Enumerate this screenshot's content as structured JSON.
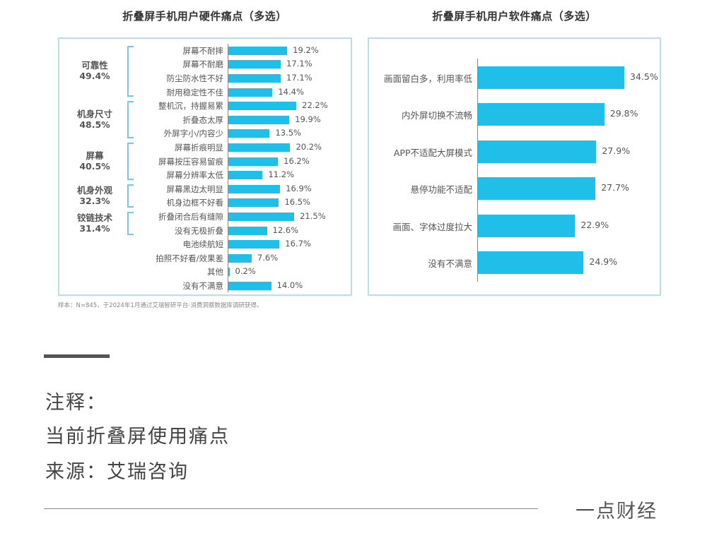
{
  "chart_data": [
    {
      "type": "bar",
      "orientation": "horizontal",
      "title": "折叠屏手机用户硬件痛点（多选）",
      "groups": [
        {
          "name": "可靠性",
          "value": "49.4%",
          "items": [
            0,
            1,
            2,
            3
          ]
        },
        {
          "name": "机身尺寸",
          "value": "48.5%",
          "items": [
            4,
            5,
            6
          ]
        },
        {
          "name": "屏幕",
          "value": "40.5%",
          "items": [
            7,
            8,
            9
          ]
        },
        {
          "name": "机身外观",
          "value": "32.3%",
          "items": [
            10,
            11
          ]
        },
        {
          "name": "铰链技术",
          "value": "31.4%",
          "items": [
            12,
            13
          ]
        }
      ],
      "categories": [
        "屏幕不耐摔",
        "屏幕不耐磨",
        "防尘防水性不好",
        "耐用稳定性不佳",
        "整机沉，持握易累",
        "折叠态太厚",
        "外屏字小/内容少",
        "屏幕折痕明显",
        "屏幕按压容易留痕",
        "屏幕分辨率太低",
        "屏幕黑边太明显",
        "机身边框不好看",
        "折叠闭合后有缝隙",
        "没有无极折叠",
        "电池续航短",
        "拍照不好看/效果差",
        "其他",
        "没有不满意"
      ],
      "values": [
        19.2,
        17.1,
        17.1,
        14.4,
        22.2,
        19.9,
        13.5,
        20.2,
        16.2,
        11.2,
        16.9,
        16.5,
        21.5,
        12.6,
        16.7,
        7.6,
        0.2,
        14.0
      ],
      "value_labels": [
        "19.2%",
        "17.1%",
        "17.1%",
        "14.4%",
        "22.2%",
        "19.9%",
        "13.5%",
        "20.2%",
        "16.2%",
        "11.2%",
        "16.9%",
        "16.5%",
        "21.5%",
        "12.6%",
        "16.7%",
        "7.6%",
        "0.2%",
        "14.0%"
      ],
      "xlabel": "",
      "ylabel": "",
      "grid": false,
      "bar_color": "#1fbfea",
      "footnote": "样本：N=845，于2024年1月通过艾瑞智研平台-消费洞察数据库调研获得。"
    },
    {
      "type": "bar",
      "orientation": "horizontal",
      "title": "折叠屏手机用户软件痛点（多选）",
      "categories": [
        "画面留白多，利用率低",
        "内外屏切换不流畅",
        "APP不适配大屏模式",
        "悬停功能不适配",
        "画面、字体过度拉大",
        "没有不满意"
      ],
      "values": [
        34.5,
        29.8,
        27.9,
        27.7,
        22.9,
        24.9
      ],
      "value_labels": [
        "34.5%",
        "29.8%",
        "27.9%",
        "27.7%",
        "22.9%",
        "24.9%"
      ],
      "xlabel": "",
      "ylabel": "",
      "grid": false,
      "bar_color": "#1fbfea"
    }
  ],
  "notes": {
    "heading": "注释：",
    "line1": "当前折叠屏使用痛点",
    "line2": "来源：艾瑞咨询"
  },
  "brand": "一点财经"
}
